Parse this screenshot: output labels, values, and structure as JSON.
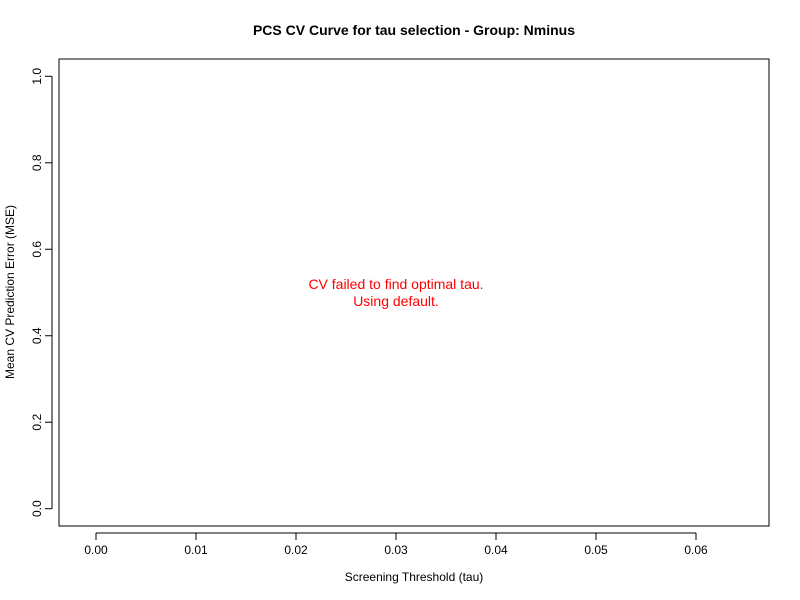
{
  "chart_data": {
    "type": "line",
    "title": "PCS CV Curve for tau selection - Group: Nminus",
    "xlabel": "Screening Threshold (tau)",
    "ylabel": "Mean CV Prediction Error (MSE)",
    "xlim": [
      -0.0037,
      0.0673
    ],
    "ylim": [
      -0.04,
      1.04
    ],
    "xticks": [
      0.0,
      0.01,
      0.02,
      0.03,
      0.04,
      0.05,
      0.06
    ],
    "xtick_labels": [
      "0.00",
      "0.01",
      "0.02",
      "0.03",
      "0.04",
      "0.05",
      "0.06"
    ],
    "yticks": [
      0.0,
      0.2,
      0.4,
      0.6,
      0.8,
      1.0
    ],
    "ytick_labels": [
      "0.0",
      "0.2",
      "0.4",
      "0.6",
      "0.8",
      "1.0"
    ],
    "grid": false,
    "series": [],
    "annotation": {
      "lines": [
        "CV failed to find optimal tau.",
        "Using default."
      ],
      "x": 0.03,
      "y": 0.5,
      "color": "#ff0000"
    }
  }
}
